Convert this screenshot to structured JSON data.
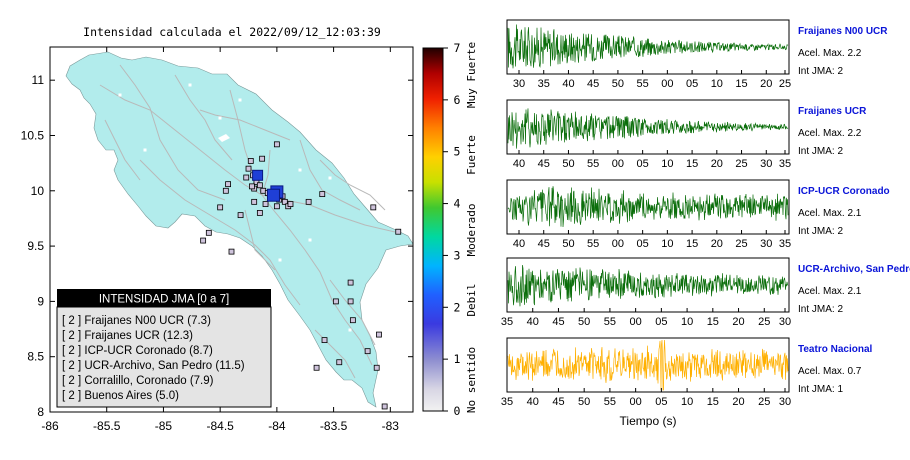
{
  "map_title": "Intensidad calculada el 2022/09/12_12:03:39",
  "colors": {
    "land": "#b2ecec",
    "sea": "#ffffff",
    "roads": "#b9b9b9",
    "station_box": "#cfc4dc",
    "epicenter": "#1f3fd6",
    "trace_green": "#0b6e0b",
    "trace_orange": "#ffb000",
    "station_title": "#0a14d8",
    "legend_header_bg": "#000000",
    "legend_bg": "#e4e4e4"
  },
  "colorbar": {
    "ticks": [
      "0",
      "1",
      "2",
      "3",
      "4",
      "5",
      "6",
      "7"
    ],
    "labels": [
      "No sentido",
      "Debil",
      "Moderado",
      "Fuerte",
      "Muy Fuerte"
    ]
  },
  "legend": {
    "header": "INTENSIDAD JMA [0 a 7]",
    "items": [
      "[ 2 ]  Fraijanes N00 UCR (7.3)",
      "[ 2 ]  Fraijanes UCR (12.3)",
      "[ 2 ]  ICP-UCR Coronado (8.7)",
      "[ 2 ]  UCR-Archivo, San Pedro (11.5)",
      "[ 2 ]  Corralillo, Coronado (7.9)",
      "[ 2 ]  Buenos Aires (5.0)"
    ]
  },
  "chart_data": [
    {
      "type": "scatter",
      "title": "Intensidad calculada el 2022/09/12_12:03:39",
      "x_ticks": [
        "-86",
        "-85.5",
        "-85",
        "-84.5",
        "-84",
        "-83.5",
        "-83"
      ],
      "y_ticks": [
        "8",
        "8.5",
        "9",
        "9.5",
        "10",
        "10.5",
        "11"
      ],
      "xlim": [
        -86,
        -82.8
      ],
      "ylim": [
        8,
        11.3
      ],
      "grid": false,
      "epicenters": [
        {
          "lon": -84.17,
          "lat": 10.14
        },
        {
          "lon": -84.0,
          "lat": 9.99
        },
        {
          "lon": -84.03,
          "lat": 9.96
        }
      ],
      "stations": [
        {
          "lon": -84.0,
          "lat": 10.42
        },
        {
          "lon": -84.23,
          "lat": 10.27
        },
        {
          "lon": -84.13,
          "lat": 10.29
        },
        {
          "lon": -84.25,
          "lat": 10.2
        },
        {
          "lon": -84.21,
          "lat": 10.14
        },
        {
          "lon": -84.27,
          "lat": 10.12
        },
        {
          "lon": -84.18,
          "lat": 10.08
        },
        {
          "lon": -84.15,
          "lat": 10.05
        },
        {
          "lon": -84.2,
          "lat": 10.02
        },
        {
          "lon": -84.12,
          "lat": 10.0
        },
        {
          "lon": -84.22,
          "lat": 10.04
        },
        {
          "lon": -84.08,
          "lat": 9.98
        },
        {
          "lon": -84.05,
          "lat": 9.93
        },
        {
          "lon": -83.98,
          "lat": 9.92
        },
        {
          "lon": -83.95,
          "lat": 9.95
        },
        {
          "lon": -83.93,
          "lat": 9.9
        },
        {
          "lon": -83.9,
          "lat": 9.86
        },
        {
          "lon": -83.88,
          "lat": 9.88
        },
        {
          "lon": -84.0,
          "lat": 9.86
        },
        {
          "lon": -84.1,
          "lat": 9.88
        },
        {
          "lon": -84.15,
          "lat": 9.8
        },
        {
          "lon": -84.2,
          "lat": 9.9
        },
        {
          "lon": -84.43,
          "lat": 10.06
        },
        {
          "lon": -84.45,
          "lat": 10.0
        },
        {
          "lon": -84.5,
          "lat": 9.85
        },
        {
          "lon": -84.6,
          "lat": 9.62
        },
        {
          "lon": -84.4,
          "lat": 9.45
        },
        {
          "lon": -83.72,
          "lat": 9.9
        },
        {
          "lon": -83.6,
          "lat": 9.97
        },
        {
          "lon": -83.15,
          "lat": 9.85
        },
        {
          "lon": -82.93,
          "lat": 9.63
        },
        {
          "lon": -83.35,
          "lat": 9.17
        },
        {
          "lon": -83.48,
          "lat": 9.0
        },
        {
          "lon": -83.35,
          "lat": 9.0
        },
        {
          "lon": -83.33,
          "lat": 8.83
        },
        {
          "lon": -83.1,
          "lat": 8.7
        },
        {
          "lon": -83.58,
          "lat": 8.65
        },
        {
          "lon": -83.2,
          "lat": 8.55
        },
        {
          "lon": -83.12,
          "lat": 8.4
        },
        {
          "lon": -83.65,
          "lat": 8.4
        },
        {
          "lon": -83.45,
          "lat": 8.45
        },
        {
          "lon": -83.05,
          "lat": 8.05
        },
        {
          "lon": -84.65,
          "lat": 9.55
        },
        {
          "lon": -84.32,
          "lat": 9.78
        }
      ]
    },
    {
      "type": "line",
      "name": "Fraijanes N00 UCR",
      "acel_text": "Acel. Max. 2.2",
      "jma_text": "Int JMA: 2",
      "x_ticks": [
        "30",
        "35",
        "40",
        "45",
        "50",
        "55",
        "00",
        "05",
        "10",
        "15",
        "20",
        "25"
      ],
      "color": "green",
      "envelope": [
        0.95,
        0.8,
        0.62,
        0.48,
        0.36,
        0.26,
        0.18,
        0.12,
        0.08
      ],
      "noise": 0.03
    },
    {
      "type": "line",
      "name": "Fraijanes UCR",
      "acel_text": "Acel. Max. 2.2",
      "jma_text": "Int JMA: 2",
      "x_ticks": [
        "40",
        "45",
        "50",
        "55",
        "00",
        "05",
        "10",
        "15",
        "20",
        "25",
        "30",
        "35"
      ],
      "color": "green",
      "envelope": [
        0.9,
        0.8,
        0.62,
        0.48,
        0.35,
        0.26,
        0.18,
        0.12,
        0.08
      ],
      "noise": 0.04
    },
    {
      "type": "line",
      "name": "ICP-UCR Coronado",
      "acel_text": "Acel. Max. 2.1",
      "jma_text": "Int JMA: 2",
      "x_ticks": [
        "40",
        "45",
        "50",
        "55",
        "00",
        "05",
        "10",
        "15",
        "20",
        "25",
        "30",
        "35"
      ],
      "color": "green",
      "envelope": [
        0.5,
        0.75,
        0.7,
        0.6,
        0.52,
        0.45,
        0.45,
        0.42,
        0.4
      ],
      "noise": 0.15
    },
    {
      "type": "line",
      "name": "UCR-Archivo, San Pedro",
      "acel_text": "Acel. Max. 2.1",
      "jma_text": "Int JMA: 2",
      "x_ticks": [
        "35",
        "40",
        "45",
        "50",
        "55",
        "00",
        "05",
        "10",
        "15",
        "20",
        "25",
        "30"
      ],
      "color": "green",
      "envelope": [
        0.8,
        0.75,
        0.65,
        0.55,
        0.48,
        0.42,
        0.38,
        0.35,
        0.3
      ],
      "noise": 0.12
    },
    {
      "type": "line",
      "name": "Teatro Nacional",
      "acel_text": "Acel. Max. 0.7",
      "jma_text": "Int JMA: 1",
      "x_ticks": [
        "35",
        "40",
        "45",
        "50",
        "55",
        "00",
        "05",
        "10",
        "15",
        "20",
        "25",
        "30"
      ],
      "xlabel": "Tiempo (s)",
      "color": "orange",
      "envelope": [
        0.5,
        0.5,
        0.55,
        0.6,
        0.7,
        0.55,
        0.5,
        0.5,
        0.5
      ],
      "noise": 0.2
    }
  ]
}
